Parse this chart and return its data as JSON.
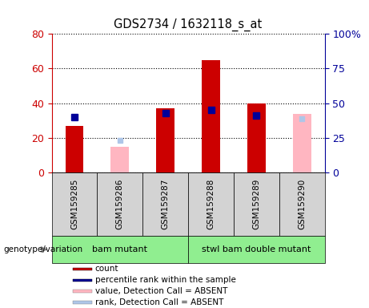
{
  "title": "GDS2734 / 1632118_s_at",
  "samples": [
    "GSM159285",
    "GSM159286",
    "GSM159287",
    "GSM159288",
    "GSM159289",
    "GSM159290"
  ],
  "count_values": [
    27,
    null,
    37,
    65,
    40,
    null
  ],
  "percentile_values": [
    40,
    null,
    43,
    45,
    41,
    null
  ],
  "absent_value_values": [
    null,
    15,
    null,
    null,
    null,
    34
  ],
  "absent_rank_values": [
    null,
    23,
    null,
    null,
    null,
    39
  ],
  "left_ylim": [
    0,
    80
  ],
  "right_ylim": [
    0,
    100
  ],
  "left_yticks": [
    0,
    20,
    40,
    60,
    80
  ],
  "right_yticks": [
    0,
    25,
    50,
    75,
    100
  ],
  "right_yticklabels": [
    "0",
    "25",
    "50",
    "75",
    "100%"
  ],
  "groups": [
    {
      "label": "bam mutant",
      "n_samples": 3,
      "color": "#90ee90"
    },
    {
      "label": "stwl bam double mutant",
      "n_samples": 3,
      "color": "#90ee90"
    }
  ],
  "count_color": "#cc0000",
  "percentile_color": "#000099",
  "absent_value_color": "#ffb6c1",
  "absent_rank_color": "#aec6e8",
  "bar_width": 0.4,
  "left_axis_color": "#cc0000",
  "right_axis_color": "#000099",
  "grid_color": "black",
  "legend_items": [
    {
      "label": "count",
      "color": "#cc0000"
    },
    {
      "label": "percentile rank within the sample",
      "color": "#000099"
    },
    {
      "label": "value, Detection Call = ABSENT",
      "color": "#ffb6c1"
    },
    {
      "label": "rank, Detection Call = ABSENT",
      "color": "#aec6e8"
    }
  ]
}
